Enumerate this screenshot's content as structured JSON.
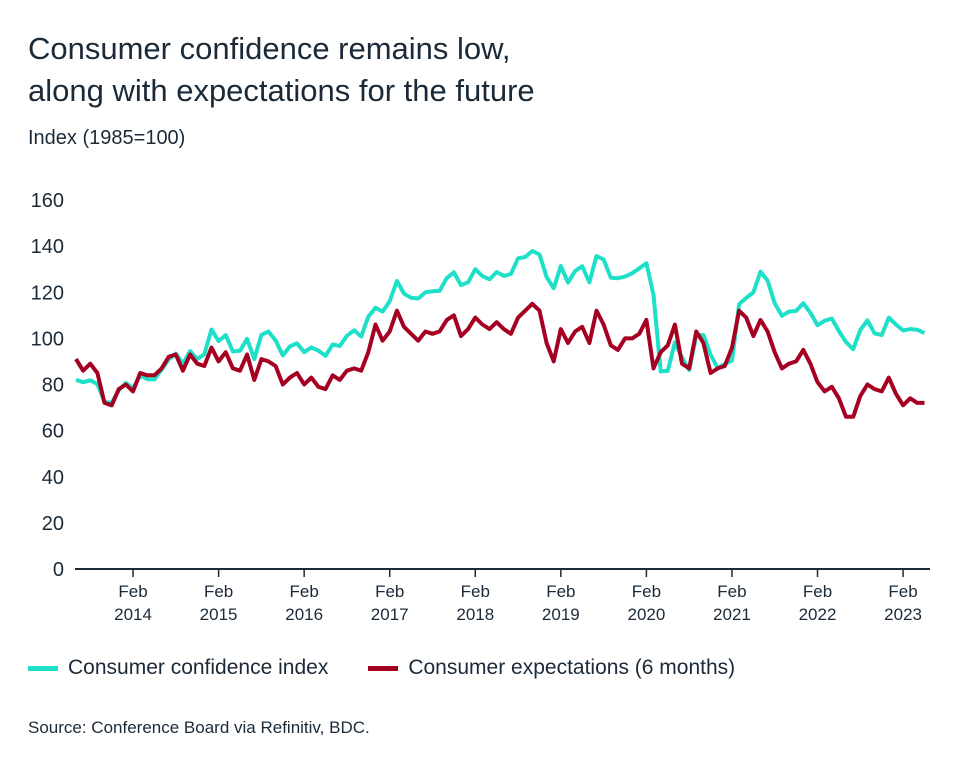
{
  "title_line1": "Consumer confidence remains low,",
  "title_line2": "along with expectations for the future",
  "subtitle": "Index (1985=100)",
  "source": "Source: Conference Board via Refinitiv, BDC.",
  "chart_data": {
    "type": "line",
    "title": "Consumer confidence remains low, along with expectations for the future",
    "ylabel": "Index (1985=100)",
    "ylim": [
      0,
      160
    ],
    "yticks": [
      "0",
      "20",
      "40",
      "60",
      "80",
      "100",
      "120",
      "140",
      "160"
    ],
    "grid": false,
    "legend_position": "bottom",
    "x_start": "2013-06",
    "x_frequency": "monthly",
    "xticks": [
      {
        "month": "Feb",
        "year": "2014",
        "date": "2014-02"
      },
      {
        "month": "Feb",
        "year": "2015",
        "date": "2015-02"
      },
      {
        "month": "Feb",
        "year": "2016",
        "date": "2016-02"
      },
      {
        "month": "Feb",
        "year": "2017",
        "date": "2017-02"
      },
      {
        "month": "Feb",
        "year": "2018",
        "date": "2018-02"
      },
      {
        "month": "Feb",
        "year": "2019",
        "date": "2019-02"
      },
      {
        "month": "Feb",
        "year": "2020",
        "date": "2020-02"
      },
      {
        "month": "Feb",
        "year": "2021",
        "date": "2021-02"
      },
      {
        "month": "Feb",
        "year": "2022",
        "date": "2022-02"
      },
      {
        "month": "Feb",
        "year": "2023",
        "date": "2023-02"
      }
    ],
    "series": [
      {
        "name": "Consumer confidence index",
        "color": "#1ee0c9",
        "values": [
          82.1,
          81.0,
          81.8,
          80.2,
          72.4,
          72.0,
          77.5,
          80.7,
          78.3,
          83.9,
          82.3,
          82.2,
          86.4,
          90.9,
          93.4,
          89.0,
          94.5,
          91.0,
          93.1,
          103.8,
          98.8,
          101.4,
          94.3,
          94.6,
          99.8,
          91.0,
          101.5,
          103.0,
          99.1,
          92.6,
          96.5,
          97.8,
          94.0,
          96.1,
          94.7,
          92.4,
          97.4,
          96.7,
          101.1,
          103.5,
          100.8,
          109.4,
          113.3,
          111.6,
          116.1,
          124.9,
          119.4,
          117.6,
          117.3,
          120.0,
          120.4,
          120.6,
          126.2,
          128.6,
          123.1,
          124.3,
          130.0,
          127.0,
          125.6,
          128.8,
          127.1,
          127.9,
          134.7,
          135.3,
          137.9,
          136.4,
          126.6,
          121.7,
          131.4,
          124.2,
          129.2,
          131.3,
          124.3,
          135.7,
          134.2,
          126.3,
          126.1,
          126.8,
          128.2,
          130.4,
          132.6,
          118.8,
          85.7,
          85.9,
          98.3,
          91.7,
          86.3,
          101.3,
          101.4,
          92.9,
          87.1,
          88.9,
          90.4,
          114.9,
          117.5,
          120.0,
          128.9,
          125.1,
          115.2,
          109.8,
          111.6,
          111.9,
          115.2,
          111.1,
          105.7,
          107.6,
          108.6,
          103.2,
          98.4,
          95.3,
          103.6,
          107.8,
          102.2,
          101.4,
          109.0,
          106.0,
          103.4,
          104.0,
          103.7,
          102.3
        ]
      },
      {
        "name": "Consumer expectations (6 months)",
        "color": "#a50021",
        "values": [
          91,
          86,
          89,
          85,
          72,
          71,
          78,
          80,
          77,
          85,
          84,
          84,
          87,
          92,
          93,
          86,
          93,
          89,
          88,
          96,
          90,
          94,
          87,
          86,
          93,
          82,
          91,
          90,
          88,
          80,
          83,
          85,
          80,
          83,
          79,
          78,
          84,
          82,
          86,
          87,
          86,
          94,
          106,
          99,
          103,
          112,
          105,
          102,
          99,
          103,
          102,
          103,
          108,
          110,
          101,
          104,
          109,
          106,
          104,
          107,
          104,
          102,
          109,
          112,
          115,
          112,
          98,
          90,
          104,
          98,
          103,
          105,
          98,
          112,
          106,
          97,
          95,
          100,
          100,
          102,
          108,
          87,
          94,
          97,
          106,
          89,
          87,
          103,
          98,
          85,
          87,
          88,
          96,
          112,
          109,
          101,
          108,
          103,
          94,
          87,
          89,
          90,
          95,
          89,
          81,
          77,
          79,
          74,
          66,
          66,
          75,
          80,
          78,
          77,
          83,
          76,
          71,
          74,
          72,
          72
        ]
      }
    ]
  }
}
